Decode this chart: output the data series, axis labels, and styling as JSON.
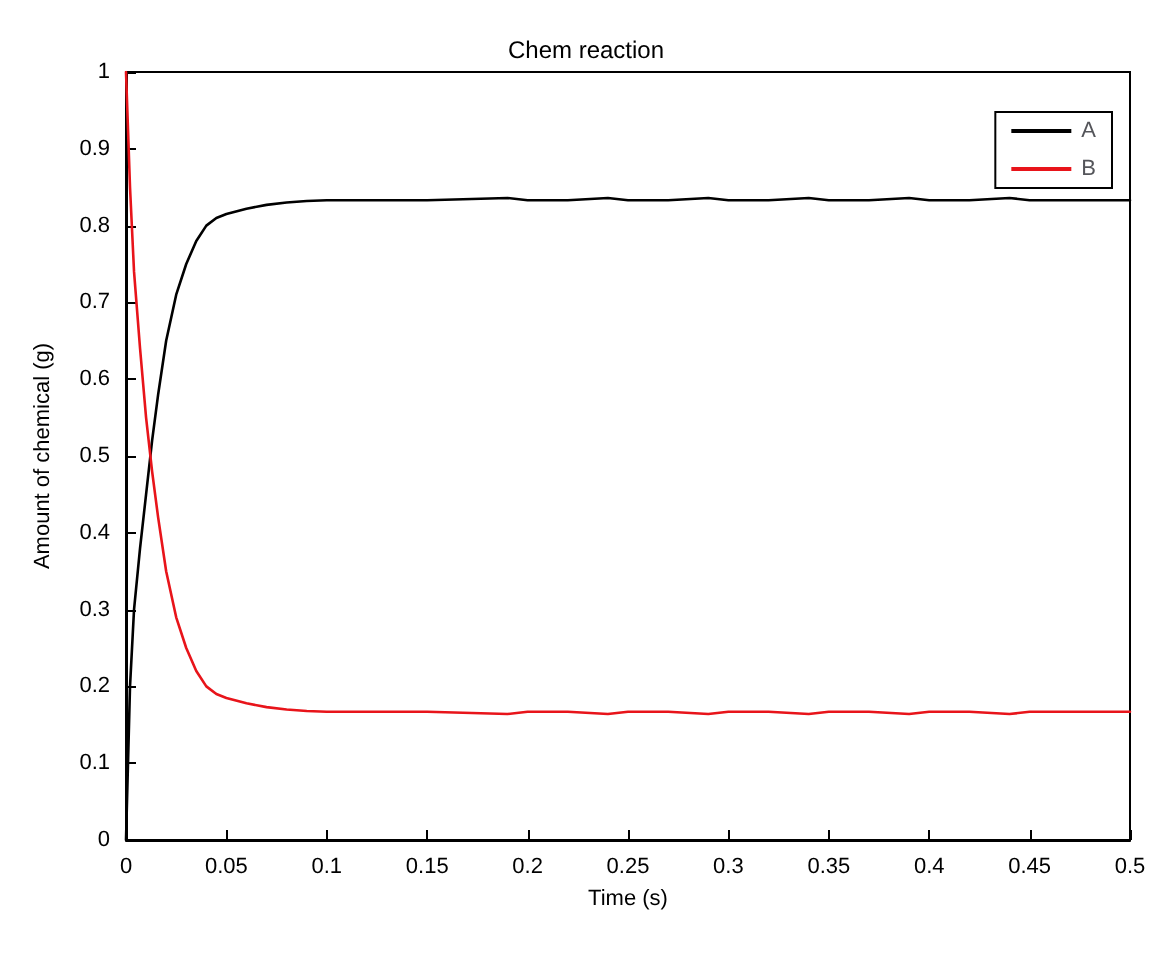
{
  "chart_data": {
    "type": "line",
    "title": "Chem reaction",
    "xlabel": "Time (s)",
    "ylabel": "Amount of chemical (g)",
    "series": [
      {
        "name": "A",
        "color": "#000000",
        "x": [
          0,
          0.002,
          0.004,
          0.007,
          0.01,
          0.013,
          0.016,
          0.02,
          0.025,
          0.03,
          0.035,
          0.04,
          0.045,
          0.05,
          0.06,
          0.07,
          0.08,
          0.09,
          0.1,
          0.15,
          0.19,
          0.2,
          0.22,
          0.24,
          0.25,
          0.27,
          0.29,
          0.3,
          0.32,
          0.34,
          0.35,
          0.37,
          0.39,
          0.4,
          0.42,
          0.44,
          0.45,
          0.47,
          0.5
        ],
        "values": [
          0,
          0.2,
          0.3,
          0.38,
          0.45,
          0.52,
          0.58,
          0.65,
          0.71,
          0.75,
          0.78,
          0.8,
          0.81,
          0.815,
          0.822,
          0.827,
          0.83,
          0.832,
          0.833,
          0.833,
          0.836,
          0.833,
          0.833,
          0.836,
          0.833,
          0.833,
          0.836,
          0.833,
          0.833,
          0.836,
          0.833,
          0.833,
          0.836,
          0.833,
          0.833,
          0.836,
          0.833,
          0.833,
          0.833
        ]
      },
      {
        "name": "B",
        "color": "#e8141a",
        "x": [
          0,
          0.002,
          0.004,
          0.007,
          0.01,
          0.013,
          0.016,
          0.02,
          0.025,
          0.03,
          0.035,
          0.04,
          0.045,
          0.05,
          0.06,
          0.07,
          0.08,
          0.09,
          0.1,
          0.15,
          0.19,
          0.2,
          0.22,
          0.24,
          0.25,
          0.27,
          0.29,
          0.3,
          0.32,
          0.34,
          0.35,
          0.37,
          0.39,
          0.4,
          0.42,
          0.44,
          0.45,
          0.47,
          0.5
        ],
        "values": [
          1,
          0.85,
          0.74,
          0.64,
          0.55,
          0.48,
          0.42,
          0.35,
          0.29,
          0.25,
          0.22,
          0.2,
          0.19,
          0.185,
          0.178,
          0.173,
          0.17,
          0.168,
          0.167,
          0.167,
          0.164,
          0.167,
          0.167,
          0.164,
          0.167,
          0.167,
          0.164,
          0.167,
          0.167,
          0.164,
          0.167,
          0.167,
          0.164,
          0.167,
          0.167,
          0.164,
          0.167,
          0.167,
          0.167
        ]
      }
    ],
    "xlim": [
      0,
      0.5
    ],
    "xticks": [
      0,
      0.05,
      0.1,
      0.15,
      0.2,
      0.25,
      0.3,
      0.35,
      0.4,
      0.45,
      0.5
    ],
    "ylim": [
      0,
      1
    ],
    "yticks": [
      0,
      0.1,
      0.2,
      0.3,
      0.4,
      0.5,
      0.6,
      0.7,
      0.8,
      0.9,
      1
    ],
    "grid": false,
    "legend": "top right",
    "marker": "none",
    "line_style": "solid"
  }
}
